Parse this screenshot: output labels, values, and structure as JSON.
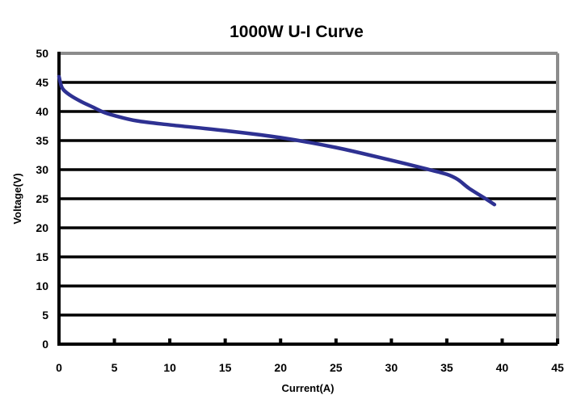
{
  "chart_data": {
    "type": "line",
    "title": "1000W U-I Curve",
    "xlabel": "Current(A)",
    "ylabel": "Voltage(V)",
    "xlim": [
      0,
      45
    ],
    "ylim": [
      0,
      50
    ],
    "xticks": [
      0,
      5,
      10,
      15,
      20,
      25,
      30,
      35,
      40,
      45
    ],
    "yticks": [
      0,
      5,
      10,
      15,
      20,
      25,
      30,
      35,
      40,
      45,
      50
    ],
    "grid": "horizontal",
    "legend": "none",
    "series": [
      {
        "color": "#2e3192",
        "x": [
          0,
          0.3,
          1,
          2,
          3,
          4,
          5,
          7,
          10,
          15,
          20,
          25,
          30,
          33,
          35,
          36,
          37,
          38.5,
          39.3
        ],
        "y": [
          46,
          44,
          42.8,
          41.7,
          40.8,
          39.9,
          39.3,
          38.4,
          37.7,
          36.7,
          35.5,
          33.8,
          31.6,
          30.2,
          29.2,
          28.3,
          26.8,
          25,
          24
        ]
      }
    ]
  }
}
